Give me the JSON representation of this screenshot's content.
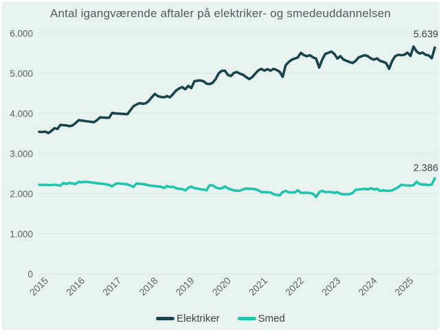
{
  "chart_data": {
    "type": "line",
    "title": "Antal igangværende aftaler på elektriker- og smedeuddannelsen",
    "xlabel": "",
    "ylabel": "",
    "x_start": "2015-01",
    "frequency": "monthly",
    "x_tick_labels": [
      "2015",
      "2016",
      "2017",
      "2018",
      "2019",
      "2020",
      "2021",
      "2022",
      "2023",
      "2024",
      "2025"
    ],
    "y_tick_labels": [
      "0",
      "1.000",
      "2.000",
      "3.000",
      "4.000",
      "5.000",
      "6.000"
    ],
    "y_tick_values": [
      0,
      1000,
      2000,
      3000,
      4000,
      5000,
      6000
    ],
    "ylim": [
      0,
      6000
    ],
    "grid": "horizontal",
    "legend_position": "bottom",
    "colors": {
      "background": "#e8f3f0",
      "gridline": "#dbe4e1",
      "title_text": "#55585b",
      "tick_text": "#5c6164",
      "annotation_text": "#3e4346"
    },
    "series": [
      {
        "name": "Elektriker",
        "color": "#16434c",
        "end_label": "5.639",
        "values": [
          3540,
          3535,
          3545,
          3510,
          3560,
          3630,
          3610,
          3715,
          3705,
          3700,
          3680,
          3700,
          3760,
          3830,
          3820,
          3810,
          3800,
          3790,
          3780,
          3830,
          3900,
          3895,
          3890,
          3890,
          4010,
          4000,
          3995,
          3990,
          3985,
          3980,
          4080,
          4180,
          4220,
          4255,
          4240,
          4250,
          4310,
          4400,
          4485,
          4430,
          4410,
          4400,
          4430,
          4400,
          4485,
          4570,
          4620,
          4655,
          4600,
          4685,
          4630,
          4800,
          4815,
          4820,
          4800,
          4740,
          4730,
          4760,
          4855,
          5000,
          5060,
          5065,
          4960,
          4930,
          5010,
          5030,
          4990,
          4960,
          4905,
          4855,
          4905,
          4990,
          5070,
          5110,
          5065,
          5100,
          5065,
          5110,
          5080,
          5040,
          4910,
          5200,
          5280,
          5340,
          5365,
          5395,
          5510,
          5450,
          5425,
          5450,
          5395,
          5365,
          5140,
          5340,
          5480,
          5510,
          5540,
          5480,
          5365,
          5425,
          5340,
          5310,
          5280,
          5255,
          5310,
          5395,
          5425,
          5450,
          5425,
          5370,
          5340,
          5370,
          5310,
          5285,
          5255,
          5110,
          5310,
          5425,
          5460,
          5450,
          5460,
          5515,
          5430,
          5665,
          5545,
          5490,
          5515,
          5460,
          5445,
          5375,
          5639
        ]
      },
      {
        "name": "Smed",
        "color": "#1fc3ae",
        "end_label": "2.386",
        "values": [
          2220,
          2215,
          2220,
          2210,
          2215,
          2220,
          2210,
          2200,
          2265,
          2240,
          2270,
          2250,
          2240,
          2295,
          2280,
          2295,
          2290,
          2280,
          2270,
          2260,
          2250,
          2245,
          2230,
          2215,
          2180,
          2240,
          2255,
          2245,
          2240,
          2230,
          2200,
          2170,
          2255,
          2245,
          2240,
          2225,
          2205,
          2195,
          2190,
          2180,
          2175,
          2140,
          2190,
          2165,
          2170,
          2135,
          2120,
          2115,
          2080,
          2145,
          2175,
          2135,
          2125,
          2110,
          2100,
          2085,
          2210,
          2205,
          2155,
          2130,
          2130,
          2180,
          2130,
          2105,
          2080,
          2070,
          2075,
          2105,
          2130,
          2120,
          2120,
          2110,
          2085,
          2040,
          2040,
          2035,
          2030,
          1985,
          1970,
          1955,
          2040,
          2070,
          2030,
          2030,
          2030,
          2085,
          2020,
          2020,
          2020,
          2015,
          1995,
          1915,
          2035,
          2070,
          2040,
          2040,
          2040,
          2015,
          2040,
          1995,
          1985,
          1985,
          1990,
          2015,
          2095,
          2105,
          2110,
          2120,
          2105,
          2135,
          2105,
          2120,
          2070,
          2080,
          2070,
          2070,
          2080,
          2120,
          2160,
          2220,
          2210,
          2200,
          2200,
          2210,
          2295,
          2240,
          2225,
          2225,
          2210,
          2225,
          2386
        ]
      }
    ]
  }
}
